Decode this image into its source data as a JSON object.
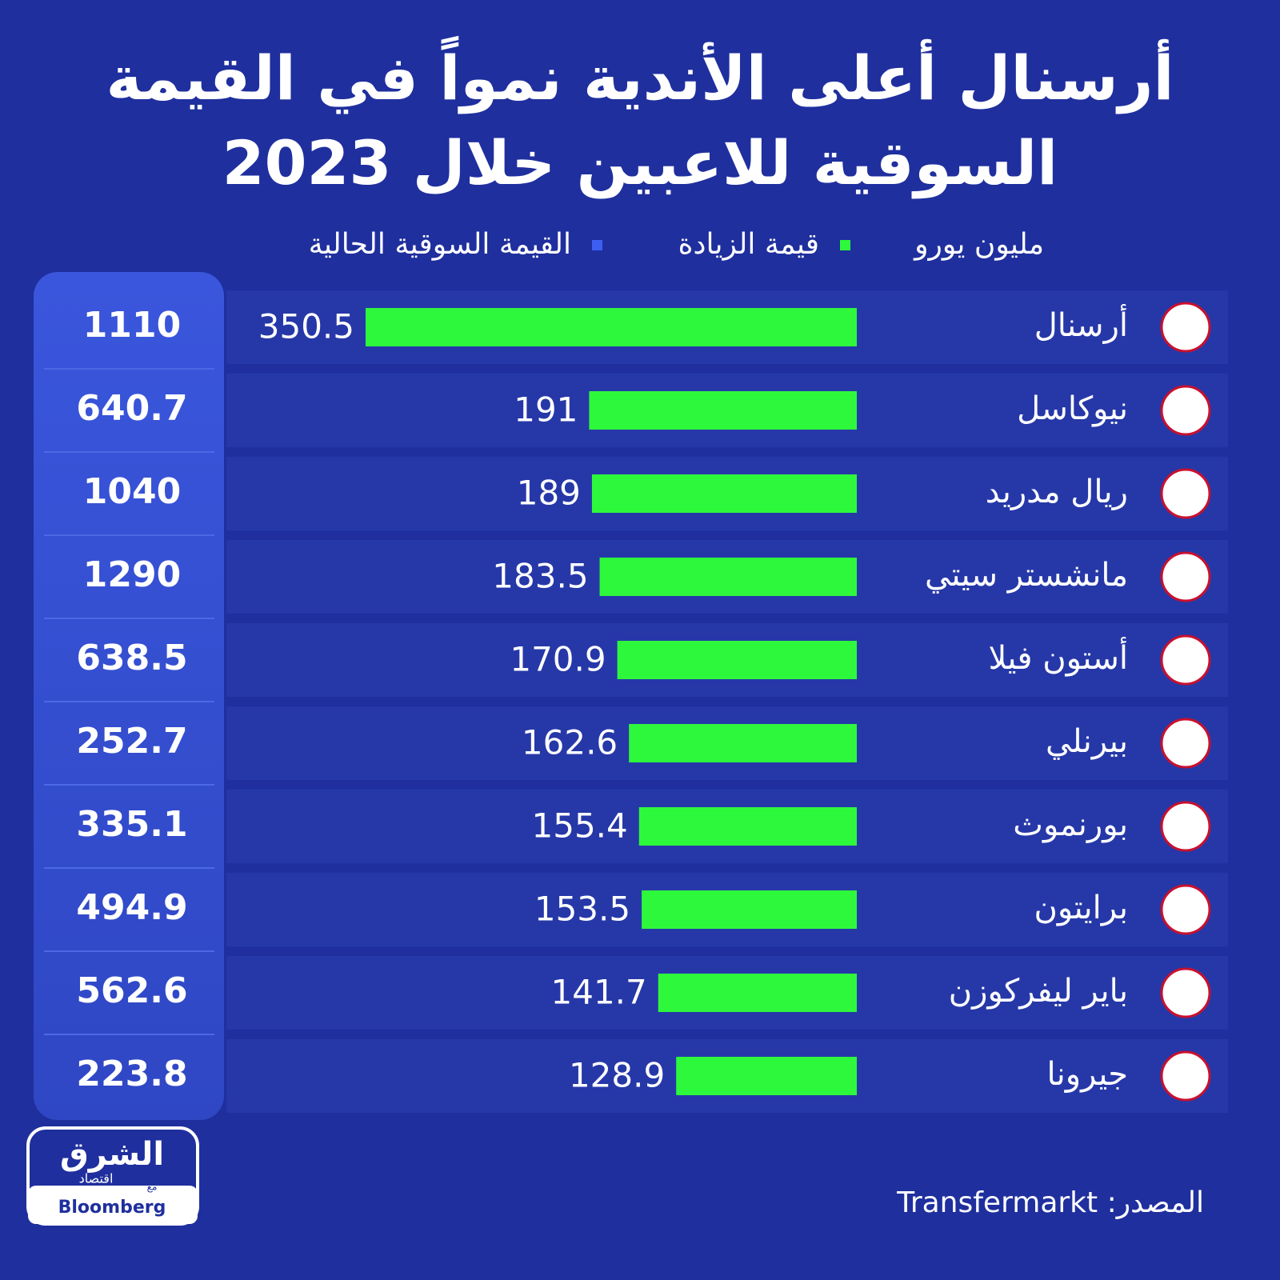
{
  "chart_data": {
    "type": "hbar",
    "title": "أرسنال أعلى الأندية نمواً في القيمة السوقية للاعبين خلال 2023",
    "unit": "مليون يورو",
    "categories": [
      "أرسنال",
      "نيوكاسل",
      "ريال مدريد",
      "مانشستر سيتي",
      "أستون فيلا",
      "بيرنلي",
      "بورنموث",
      "برايتون",
      "باير ليفركوزن",
      "جيرونا"
    ],
    "series": [
      {
        "name": "قيمة الزيادة",
        "color": "#2ef83c",
        "values": [
          350.5,
          191,
          189,
          183.5,
          170.9,
          162.6,
          155.4,
          153.5,
          141.7,
          128.9
        ]
      },
      {
        "name": "القيمة السوقية الحالية",
        "color": "#3d5ef0",
        "values": [
          1110,
          640.7,
          1040,
          1290,
          638.5,
          252.7,
          335.1,
          494.9,
          562.6,
          223.8
        ]
      }
    ],
    "source": "المصدر: Transfermarkt"
  },
  "logo": {
    "name": "الشرق",
    "sub": "اقتصاد",
    "with": "مع",
    "partner": "Bloomberg"
  }
}
